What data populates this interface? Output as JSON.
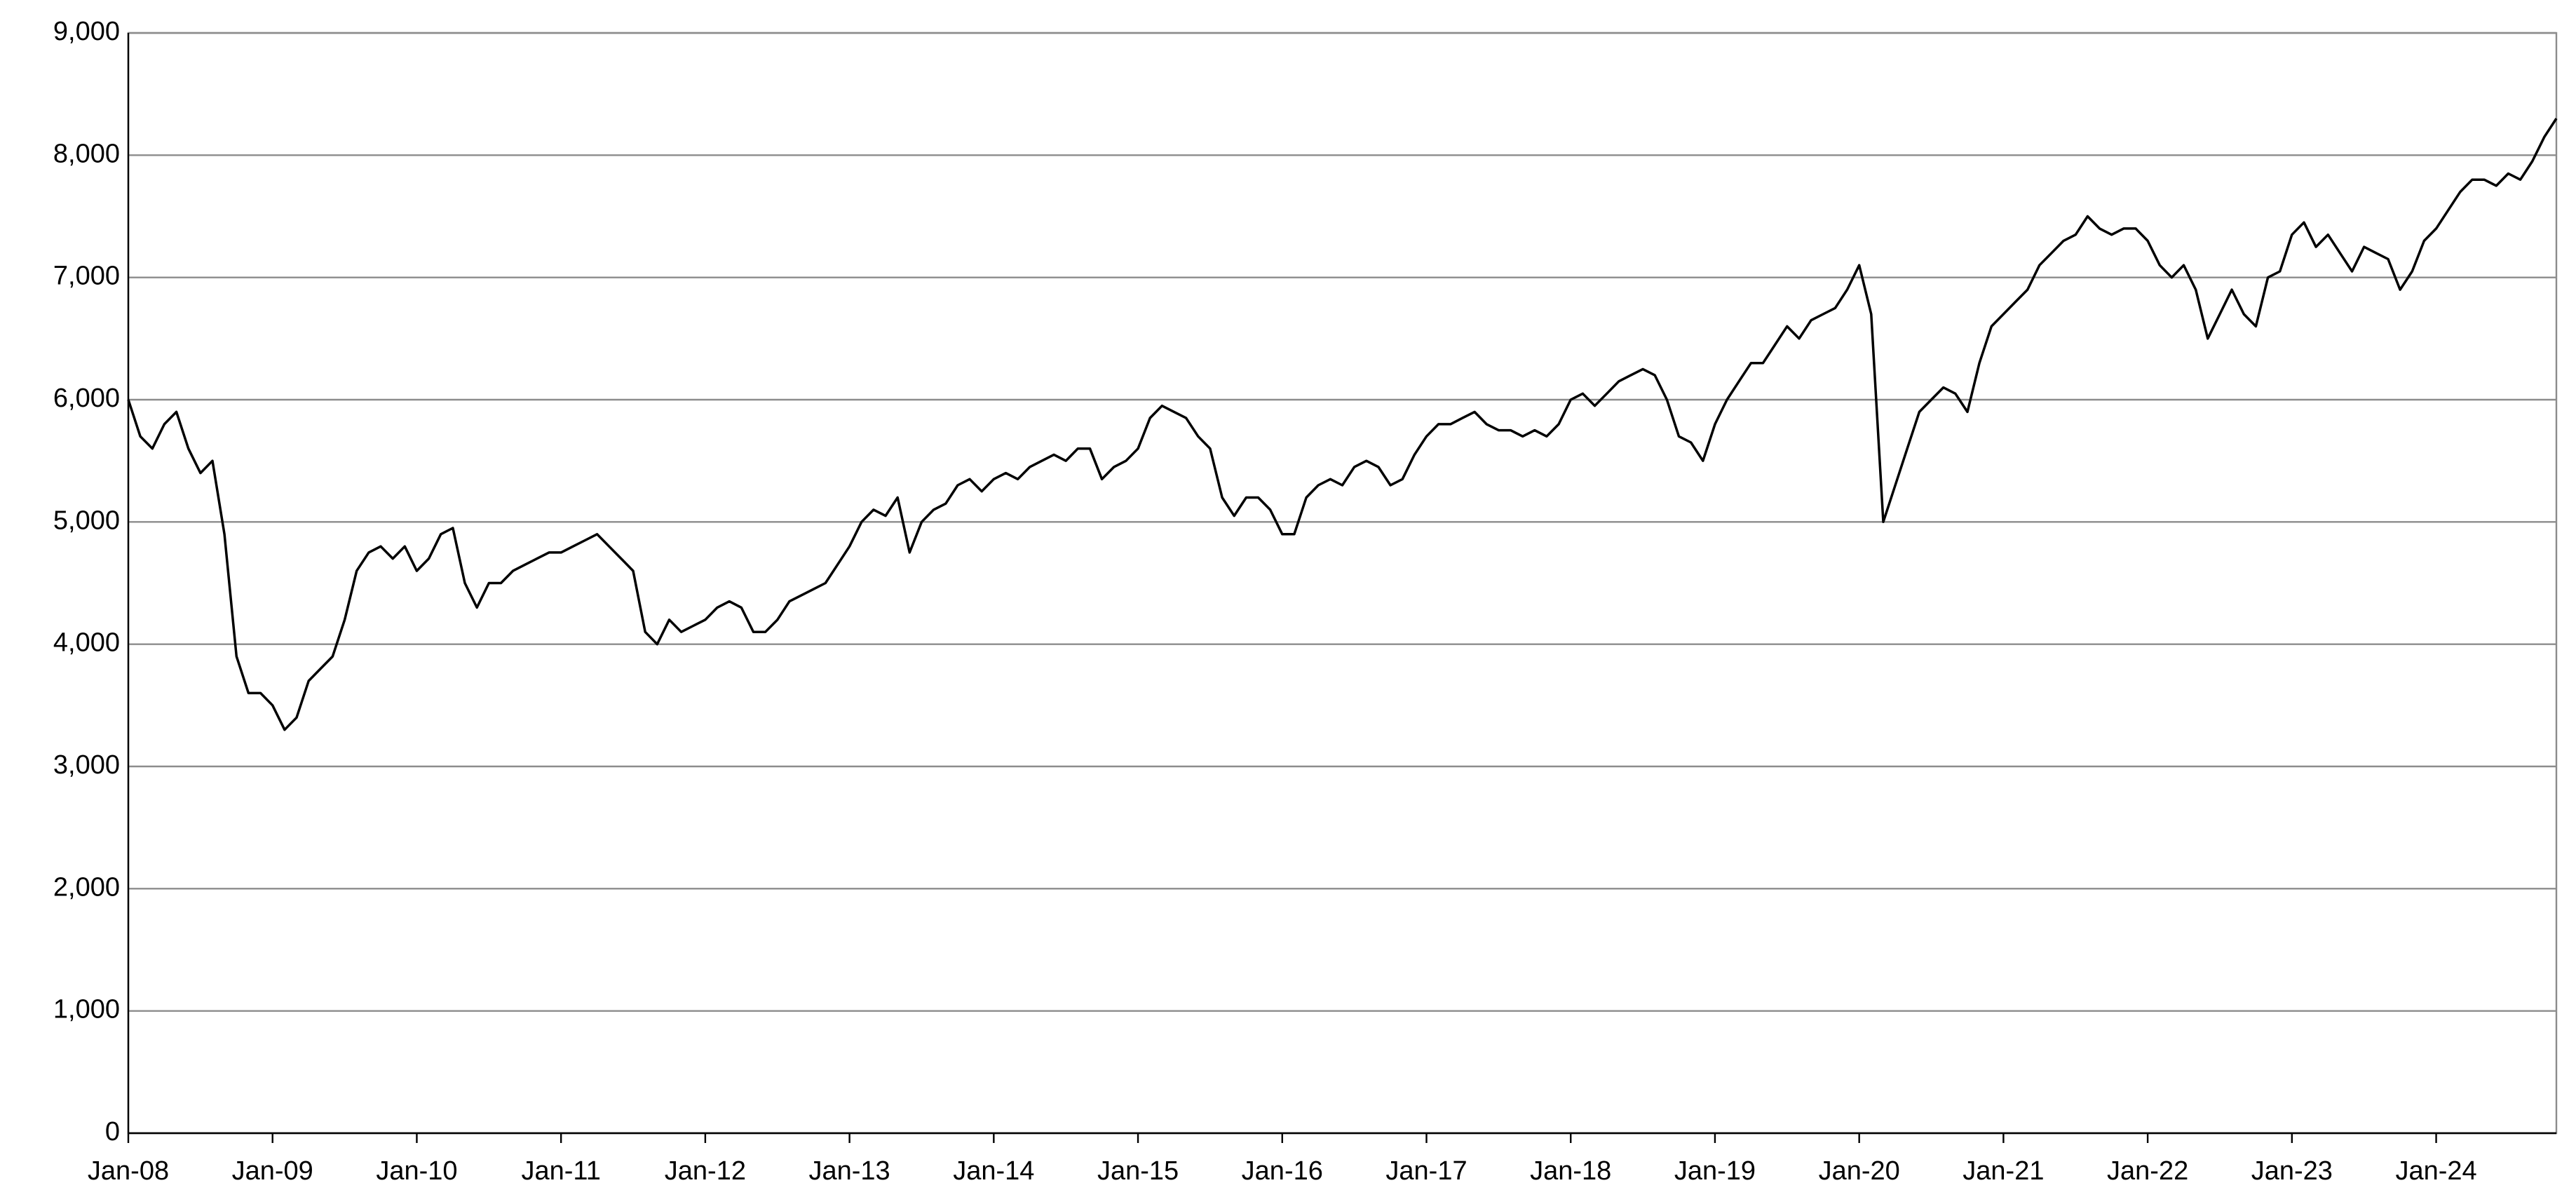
{
  "chart_data": {
    "type": "line",
    "color": "#000000",
    "grid": true,
    "x": [
      "2008-01",
      "2008-02",
      "2008-03",
      "2008-04",
      "2008-05",
      "2008-06",
      "2008-07",
      "2008-08",
      "2008-09",
      "2008-10",
      "2008-11",
      "2008-12",
      "2009-01",
      "2009-02",
      "2009-03",
      "2009-04",
      "2009-05",
      "2009-06",
      "2009-07",
      "2009-08",
      "2009-09",
      "2009-10",
      "2009-11",
      "2009-12",
      "2010-01",
      "2010-02",
      "2010-03",
      "2010-04",
      "2010-05",
      "2010-06",
      "2010-07",
      "2010-08",
      "2010-09",
      "2010-10",
      "2010-11",
      "2010-12",
      "2011-01",
      "2011-02",
      "2011-03",
      "2011-04",
      "2011-05",
      "2011-06",
      "2011-07",
      "2011-08",
      "2011-09",
      "2011-10",
      "2011-11",
      "2011-12",
      "2012-01",
      "2012-02",
      "2012-03",
      "2012-04",
      "2012-05",
      "2012-06",
      "2012-07",
      "2012-08",
      "2012-09",
      "2012-10",
      "2012-11",
      "2012-12",
      "2013-01",
      "2013-02",
      "2013-03",
      "2013-04",
      "2013-05",
      "2013-06",
      "2013-07",
      "2013-08",
      "2013-09",
      "2013-10",
      "2013-11",
      "2013-12",
      "2014-01",
      "2014-02",
      "2014-03",
      "2014-04",
      "2014-05",
      "2014-06",
      "2014-07",
      "2014-08",
      "2014-09",
      "2014-10",
      "2014-11",
      "2014-12",
      "2015-01",
      "2015-02",
      "2015-03",
      "2015-04",
      "2015-05",
      "2015-06",
      "2015-07",
      "2015-08",
      "2015-09",
      "2015-10",
      "2015-11",
      "2015-12",
      "2016-01",
      "2016-02",
      "2016-03",
      "2016-04",
      "2016-05",
      "2016-06",
      "2016-07",
      "2016-08",
      "2016-09",
      "2016-10",
      "2016-11",
      "2016-12",
      "2017-01",
      "2017-02",
      "2017-03",
      "2017-04",
      "2017-05",
      "2017-06",
      "2017-07",
      "2017-08",
      "2017-09",
      "2017-10",
      "2017-11",
      "2017-12",
      "2018-01",
      "2018-02",
      "2018-03",
      "2018-04",
      "2018-05",
      "2018-06",
      "2018-07",
      "2018-08",
      "2018-09",
      "2018-10",
      "2018-11",
      "2018-12",
      "2019-01",
      "2019-02",
      "2019-03",
      "2019-04",
      "2019-05",
      "2019-06",
      "2019-07",
      "2019-08",
      "2019-09",
      "2019-10",
      "2019-11",
      "2019-12",
      "2020-01",
      "2020-02",
      "2020-03",
      "2020-04",
      "2020-05",
      "2020-06",
      "2020-07",
      "2020-08",
      "2020-09",
      "2020-10",
      "2020-11",
      "2020-12",
      "2021-01",
      "2021-02",
      "2021-03",
      "2021-04",
      "2021-05",
      "2021-06",
      "2021-07",
      "2021-08",
      "2021-09",
      "2021-10",
      "2021-11",
      "2021-12",
      "2022-01",
      "2022-02",
      "2022-03",
      "2022-04",
      "2022-05",
      "2022-06",
      "2022-07",
      "2022-08",
      "2022-09",
      "2022-10",
      "2022-11",
      "2022-12",
      "2023-01",
      "2023-02",
      "2023-03",
      "2023-04",
      "2023-05",
      "2023-06",
      "2023-07",
      "2023-08",
      "2023-09",
      "2023-10",
      "2023-11",
      "2023-12",
      "2024-01",
      "2024-02",
      "2024-03",
      "2024-04",
      "2024-05",
      "2024-06",
      "2024-07",
      "2024-08",
      "2024-09",
      "2024-10",
      "2024-11"
    ],
    "values": [
      6000,
      5700,
      5600,
      5800,
      5900,
      5600,
      5400,
      5500,
      4900,
      3900,
      3600,
      3600,
      3500,
      3300,
      3400,
      3700,
      3800,
      3900,
      4200,
      4600,
      4750,
      4800,
      4700,
      4800,
      4600,
      4700,
      4900,
      4950,
      4500,
      4300,
      4500,
      4500,
      4600,
      4650,
      4700,
      4750,
      4750,
      4800,
      4850,
      4900,
      4800,
      4700,
      4600,
      4100,
      4000,
      4200,
      4100,
      4150,
      4200,
      4300,
      4350,
      4300,
      4100,
      4100,
      4200,
      4350,
      4400,
      4450,
      4500,
      4650,
      4800,
      5000,
      5100,
      5050,
      5200,
      4750,
      5000,
      5100,
      5150,
      5300,
      5350,
      5250,
      5350,
      5400,
      5350,
      5450,
      5500,
      5550,
      5500,
      5600,
      5600,
      5350,
      5450,
      5500,
      5600,
      5850,
      5950,
      5900,
      5850,
      5700,
      5600,
      5200,
      5050,
      5200,
      5200,
      5100,
      4900,
      4900,
      5200,
      5300,
      5350,
      5300,
      5450,
      5500,
      5450,
      5300,
      5350,
      5550,
      5700,
      5800,
      5800,
      5850,
      5900,
      5800,
      5750,
      5750,
      5700,
      5750,
      5700,
      5800,
      6000,
      6050,
      5950,
      6050,
      6150,
      6200,
      6250,
      6200,
      6000,
      5700,
      5650,
      5500,
      5800,
      6000,
      6150,
      6300,
      6300,
      6450,
      6600,
      6500,
      6650,
      6700,
      6750,
      6900,
      7100,
      6700,
      5000,
      5300,
      5600,
      5900,
      6000,
      6100,
      6050,
      5900,
      6300,
      6600,
      6700,
      6800,
      6900,
      7100,
      7200,
      7300,
      7350,
      7500,
      7400,
      7350,
      7400,
      7400,
      7300,
      7100,
      7000,
      7100,
      6900,
      6500,
      6700,
      6900,
      6700,
      6600,
      7000,
      7050,
      7350,
      7450,
      7250,
      7350,
      7200,
      7050,
      7250,
      7200,
      7150,
      6900,
      7050,
      7300,
      7400,
      7550,
      7700,
      7800,
      7800,
      7750,
      7850,
      7800,
      7950,
      8150,
      8300
    ],
    "xlim": [
      "2008-01",
      "2024-11"
    ],
    "xticks": [
      {
        "value": "2008-01",
        "label": "Jan-08"
      },
      {
        "value": "2009-01",
        "label": "Jan-09"
      },
      {
        "value": "2010-01",
        "label": "Jan-10"
      },
      {
        "value": "2011-01",
        "label": "Jan-11"
      },
      {
        "value": "2012-01",
        "label": "Jan-12"
      },
      {
        "value": "2013-01",
        "label": "Jan-13"
      },
      {
        "value": "2014-01",
        "label": "Jan-14"
      },
      {
        "value": "2015-01",
        "label": "Jan-15"
      },
      {
        "value": "2016-01",
        "label": "Jan-16"
      },
      {
        "value": "2017-01",
        "label": "Jan-17"
      },
      {
        "value": "2018-01",
        "label": "Jan-18"
      },
      {
        "value": "2019-01",
        "label": "Jan-19"
      },
      {
        "value": "2020-01",
        "label": "Jan-20"
      },
      {
        "value": "2021-01",
        "label": "Jan-21"
      },
      {
        "value": "2022-01",
        "label": "Jan-22"
      },
      {
        "value": "2023-01",
        "label": "Jan-23"
      },
      {
        "value": "2024-01",
        "label": "Jan-24"
      }
    ],
    "ylim": [
      0,
      9000
    ],
    "yticks": [
      0,
      {
        "value": 1000,
        "label": "1,000"
      },
      {
        "value": 2000,
        "label": "2,000"
      },
      {
        "value": 3000,
        "label": "3,000"
      },
      {
        "value": 4000,
        "label": "4,000"
      },
      {
        "value": 5000,
        "label": "5,000"
      },
      {
        "value": 6000,
        "label": "6,000"
      },
      {
        "value": 7000,
        "label": "7,000"
      },
      {
        "value": 8000,
        "label": "8,000"
      },
      {
        "value": 9000,
        "label": "9,000"
      }
    ]
  }
}
